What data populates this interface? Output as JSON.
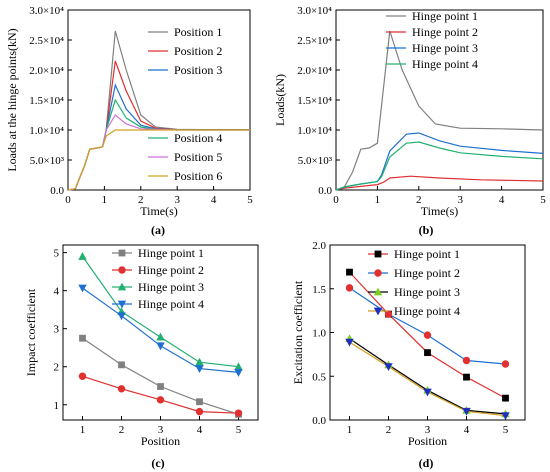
{
  "panels": {
    "a": {
      "caption": "(a)"
    },
    "b": {
      "caption": "(b)"
    },
    "c": {
      "caption": "(c)"
    },
    "d": {
      "caption": "(d)"
    }
  },
  "chart_data": [
    {
      "id": "a",
      "type": "line",
      "xlabel": "Time(s)",
      "ylabel": "Loads at the hinge points(kN)",
      "xlim": [
        0,
        5
      ],
      "ylim": [
        0,
        30000
      ],
      "xticks": [
        "0",
        "1",
        "2",
        "3",
        "4",
        "5"
      ],
      "yticks": [
        "0.0",
        "5.0×10³",
        "1.0×10⁴",
        "1.5×10⁴",
        "2.0×10⁴",
        "2.5×10⁴",
        "3.0×10⁴"
      ],
      "legend": "top-right and bottom-right",
      "series": [
        {
          "name": "Position 1",
          "color": "#808080",
          "points": [
            [
              0,
              0
            ],
            [
              0.2,
              200
            ],
            [
              0.45,
              4000
            ],
            [
              0.6,
              6800
            ],
            [
              0.8,
              7000
            ],
            [
              0.95,
              7200
            ],
            [
              1.05,
              10000
            ],
            [
              1.3,
              26500
            ],
            [
              1.6,
              20000
            ],
            [
              2.0,
              12500
            ],
            [
              2.4,
              10500
            ],
            [
              3,
              10100
            ],
            [
              4,
              10050
            ],
            [
              5,
              10050
            ]
          ]
        },
        {
          "name": "Position 2",
          "color": "#e03030",
          "points": [
            [
              0,
              0
            ],
            [
              0.2,
              200
            ],
            [
              0.45,
              4000
            ],
            [
              0.6,
              6800
            ],
            [
              0.8,
              7000
            ],
            [
              0.95,
              7200
            ],
            [
              1.05,
              10000
            ],
            [
              1.3,
              21500
            ],
            [
              1.6,
              16500
            ],
            [
              2.0,
              11500
            ],
            [
              2.4,
              10300
            ],
            [
              3,
              10050
            ],
            [
              4,
              10030
            ],
            [
              5,
              10030
            ]
          ]
        },
        {
          "name": "Position 3",
          "color": "#1e70d0",
          "points": [
            [
              0,
              0
            ],
            [
              0.2,
              200
            ],
            [
              0.45,
              4000
            ],
            [
              0.6,
              6800
            ],
            [
              0.8,
              7000
            ],
            [
              0.95,
              7200
            ],
            [
              1.05,
              10000
            ],
            [
              1.3,
              17500
            ],
            [
              1.6,
              13500
            ],
            [
              2.0,
              10800
            ],
            [
              2.4,
              10200
            ],
            [
              3,
              10020
            ],
            [
              4,
              10010
            ],
            [
              5,
              10010
            ]
          ]
        },
        {
          "name": "Position 4",
          "color": "#20b070",
          "points": [
            [
              0,
              0
            ],
            [
              0.2,
              200
            ],
            [
              0.45,
              4000
            ],
            [
              0.6,
              6800
            ],
            [
              0.8,
              7000
            ],
            [
              0.95,
              7200
            ],
            [
              1.05,
              10000
            ],
            [
              1.3,
              15000
            ],
            [
              1.6,
              12000
            ],
            [
              2.0,
              10500
            ],
            [
              2.4,
              10100
            ],
            [
              3,
              10010
            ],
            [
              4,
              10000
            ],
            [
              5,
              10000
            ]
          ]
        },
        {
          "name": "Position 5",
          "color": "#d070d8",
          "points": [
            [
              0,
              0
            ],
            [
              0.2,
              200
            ],
            [
              0.45,
              4000
            ],
            [
              0.6,
              6800
            ],
            [
              0.8,
              7000
            ],
            [
              0.95,
              7200
            ],
            [
              1.05,
              10000
            ],
            [
              1.3,
              12500
            ],
            [
              1.6,
              11000
            ],
            [
              2.0,
              10200
            ],
            [
              3,
              10000
            ],
            [
              5,
              10000
            ]
          ]
        },
        {
          "name": "Position 6",
          "color": "#d4a020",
          "points": [
            [
              0,
              0
            ],
            [
              0.2,
              200
            ],
            [
              0.45,
              4000
            ],
            [
              0.6,
              6800
            ],
            [
              0.8,
              7000
            ],
            [
              0.95,
              7200
            ],
            [
              1.05,
              9000
            ],
            [
              1.3,
              10000
            ],
            [
              2,
              10000
            ],
            [
              5,
              10000
            ]
          ]
        }
      ]
    },
    {
      "id": "b",
      "type": "line",
      "xlabel": "Time(s)",
      "ylabel": "Loads(kN)",
      "xlim": [
        0,
        5
      ],
      "ylim": [
        0,
        30000
      ],
      "xticks": [
        "0",
        "1",
        "2",
        "3",
        "4",
        "5"
      ],
      "yticks": [
        "0.0",
        "5.0×10³",
        "1.0×10⁴",
        "1.5×10⁴",
        "2.0×10⁴",
        "2.5×10⁴",
        "3.0×10⁴"
      ],
      "legend": "top-right",
      "series": [
        {
          "name": "Hinge point 1",
          "color": "#808080",
          "points": [
            [
              0,
              0
            ],
            [
              0.2,
              500
            ],
            [
              0.4,
              3000
            ],
            [
              0.6,
              6800
            ],
            [
              0.8,
              7000
            ],
            [
              1.0,
              7800
            ],
            [
              1.1,
              14000
            ],
            [
              1.3,
              26500
            ],
            [
              1.6,
              20000
            ],
            [
              2.0,
              14000
            ],
            [
              2.4,
              11000
            ],
            [
              3,
              10300
            ],
            [
              4,
              10200
            ],
            [
              5,
              10000
            ]
          ]
        },
        {
          "name": "Hinge point 2",
          "color": "#e03030",
          "points": [
            [
              0,
              0
            ],
            [
              0.2,
              300
            ],
            [
              0.6,
              600
            ],
            [
              1.0,
              900
            ],
            [
              1.15,
              1300
            ],
            [
              1.3,
              2000
            ],
            [
              1.8,
              2300
            ],
            [
              2.5,
              2000
            ],
            [
              3.5,
              1700
            ],
            [
              5,
              1500
            ]
          ]
        },
        {
          "name": "Hinge point 3",
          "color": "#1e70d0",
          "points": [
            [
              0,
              0
            ],
            [
              0.2,
              500
            ],
            [
              0.6,
              1000
            ],
            [
              1.0,
              1400
            ],
            [
              1.1,
              2500
            ],
            [
              1.3,
              6500
            ],
            [
              1.7,
              9300
            ],
            [
              2.0,
              9500
            ],
            [
              2.5,
              8200
            ],
            [
              3,
              7300
            ],
            [
              4,
              6600
            ],
            [
              5,
              6100
            ]
          ]
        },
        {
          "name": "Hinge point 4",
          "color": "#20b070",
          "points": [
            [
              0,
              0
            ],
            [
              0.2,
              500
            ],
            [
              0.6,
              1000
            ],
            [
              1.0,
              1400
            ],
            [
              1.1,
              2200
            ],
            [
              1.3,
              5500
            ],
            [
              1.7,
              7800
            ],
            [
              2.0,
              8000
            ],
            [
              2.5,
              7000
            ],
            [
              3,
              6200
            ],
            [
              4,
              5600
            ],
            [
              5,
              5200
            ]
          ]
        }
      ]
    },
    {
      "id": "c",
      "type": "line",
      "xlabel": "Position",
      "ylabel": "Impact coefficient",
      "xlim": [
        0.5,
        5.5
      ],
      "ylim": [
        0.6,
        5.2
      ],
      "xticks": [
        "1",
        "2",
        "3",
        "4",
        "5"
      ],
      "yticks": [
        "1",
        "2",
        "3",
        "4",
        "5"
      ],
      "legend": "top-right",
      "x": [
        1,
        2,
        3,
        4,
        5
      ],
      "series": [
        {
          "name": "Hinge point 1",
          "color": "#808080",
          "marker": "square",
          "values": [
            2.75,
            2.05,
            1.48,
            1.08,
            0.75
          ]
        },
        {
          "name": "Hinge point 2",
          "color": "#e03030",
          "marker": "circle",
          "values": [
            1.75,
            1.42,
            1.13,
            0.82,
            0.78
          ]
        },
        {
          "name": "Hinge point 3",
          "color": "#20b070",
          "marker": "triangle-up",
          "values": [
            4.9,
            3.45,
            2.78,
            2.12,
            2.0
          ]
        },
        {
          "name": "Hinge point 4",
          "color": "#1e70d0",
          "marker": "triangle-down",
          "values": [
            4.07,
            3.34,
            2.55,
            1.95,
            1.85
          ]
        }
      ]
    },
    {
      "id": "d",
      "type": "line",
      "xlabel": "Position",
      "ylabel": "Excitation coefficient",
      "xlim": [
        0.5,
        5.5
      ],
      "ylim": [
        0,
        2.0
      ],
      "xticks": [
        "1",
        "2",
        "3",
        "4",
        "5"
      ],
      "yticks": [
        "0.0",
        "0.5",
        "1.0",
        "1.5",
        "2.0"
      ],
      "legend": "top-right",
      "x": [
        1,
        2,
        3,
        4,
        5
      ],
      "series": [
        {
          "name": "Hinge point 1",
          "color": "#e03030",
          "marker": "square",
          "marker_color": "#000000",
          "values": [
            1.69,
            1.21,
            0.77,
            0.49,
            0.25
          ]
        },
        {
          "name": "Hinge point 2",
          "color": "#1e70d0",
          "marker": "circle",
          "marker_color": "#e03030",
          "values": [
            1.51,
            1.21,
            0.97,
            0.68,
            0.64
          ]
        },
        {
          "name": "Hinge point 3",
          "color": "#000000",
          "marker": "triangle-up",
          "marker_color": "#7bd020",
          "values": [
            0.93,
            0.63,
            0.34,
            0.11,
            0.07
          ]
        },
        {
          "name": "Hinge point 4",
          "color": "#d4a020",
          "marker": "triangle-down",
          "marker_color": "#1e30c0",
          "values": [
            0.89,
            0.61,
            0.32,
            0.1,
            0.05
          ]
        }
      ]
    }
  ]
}
